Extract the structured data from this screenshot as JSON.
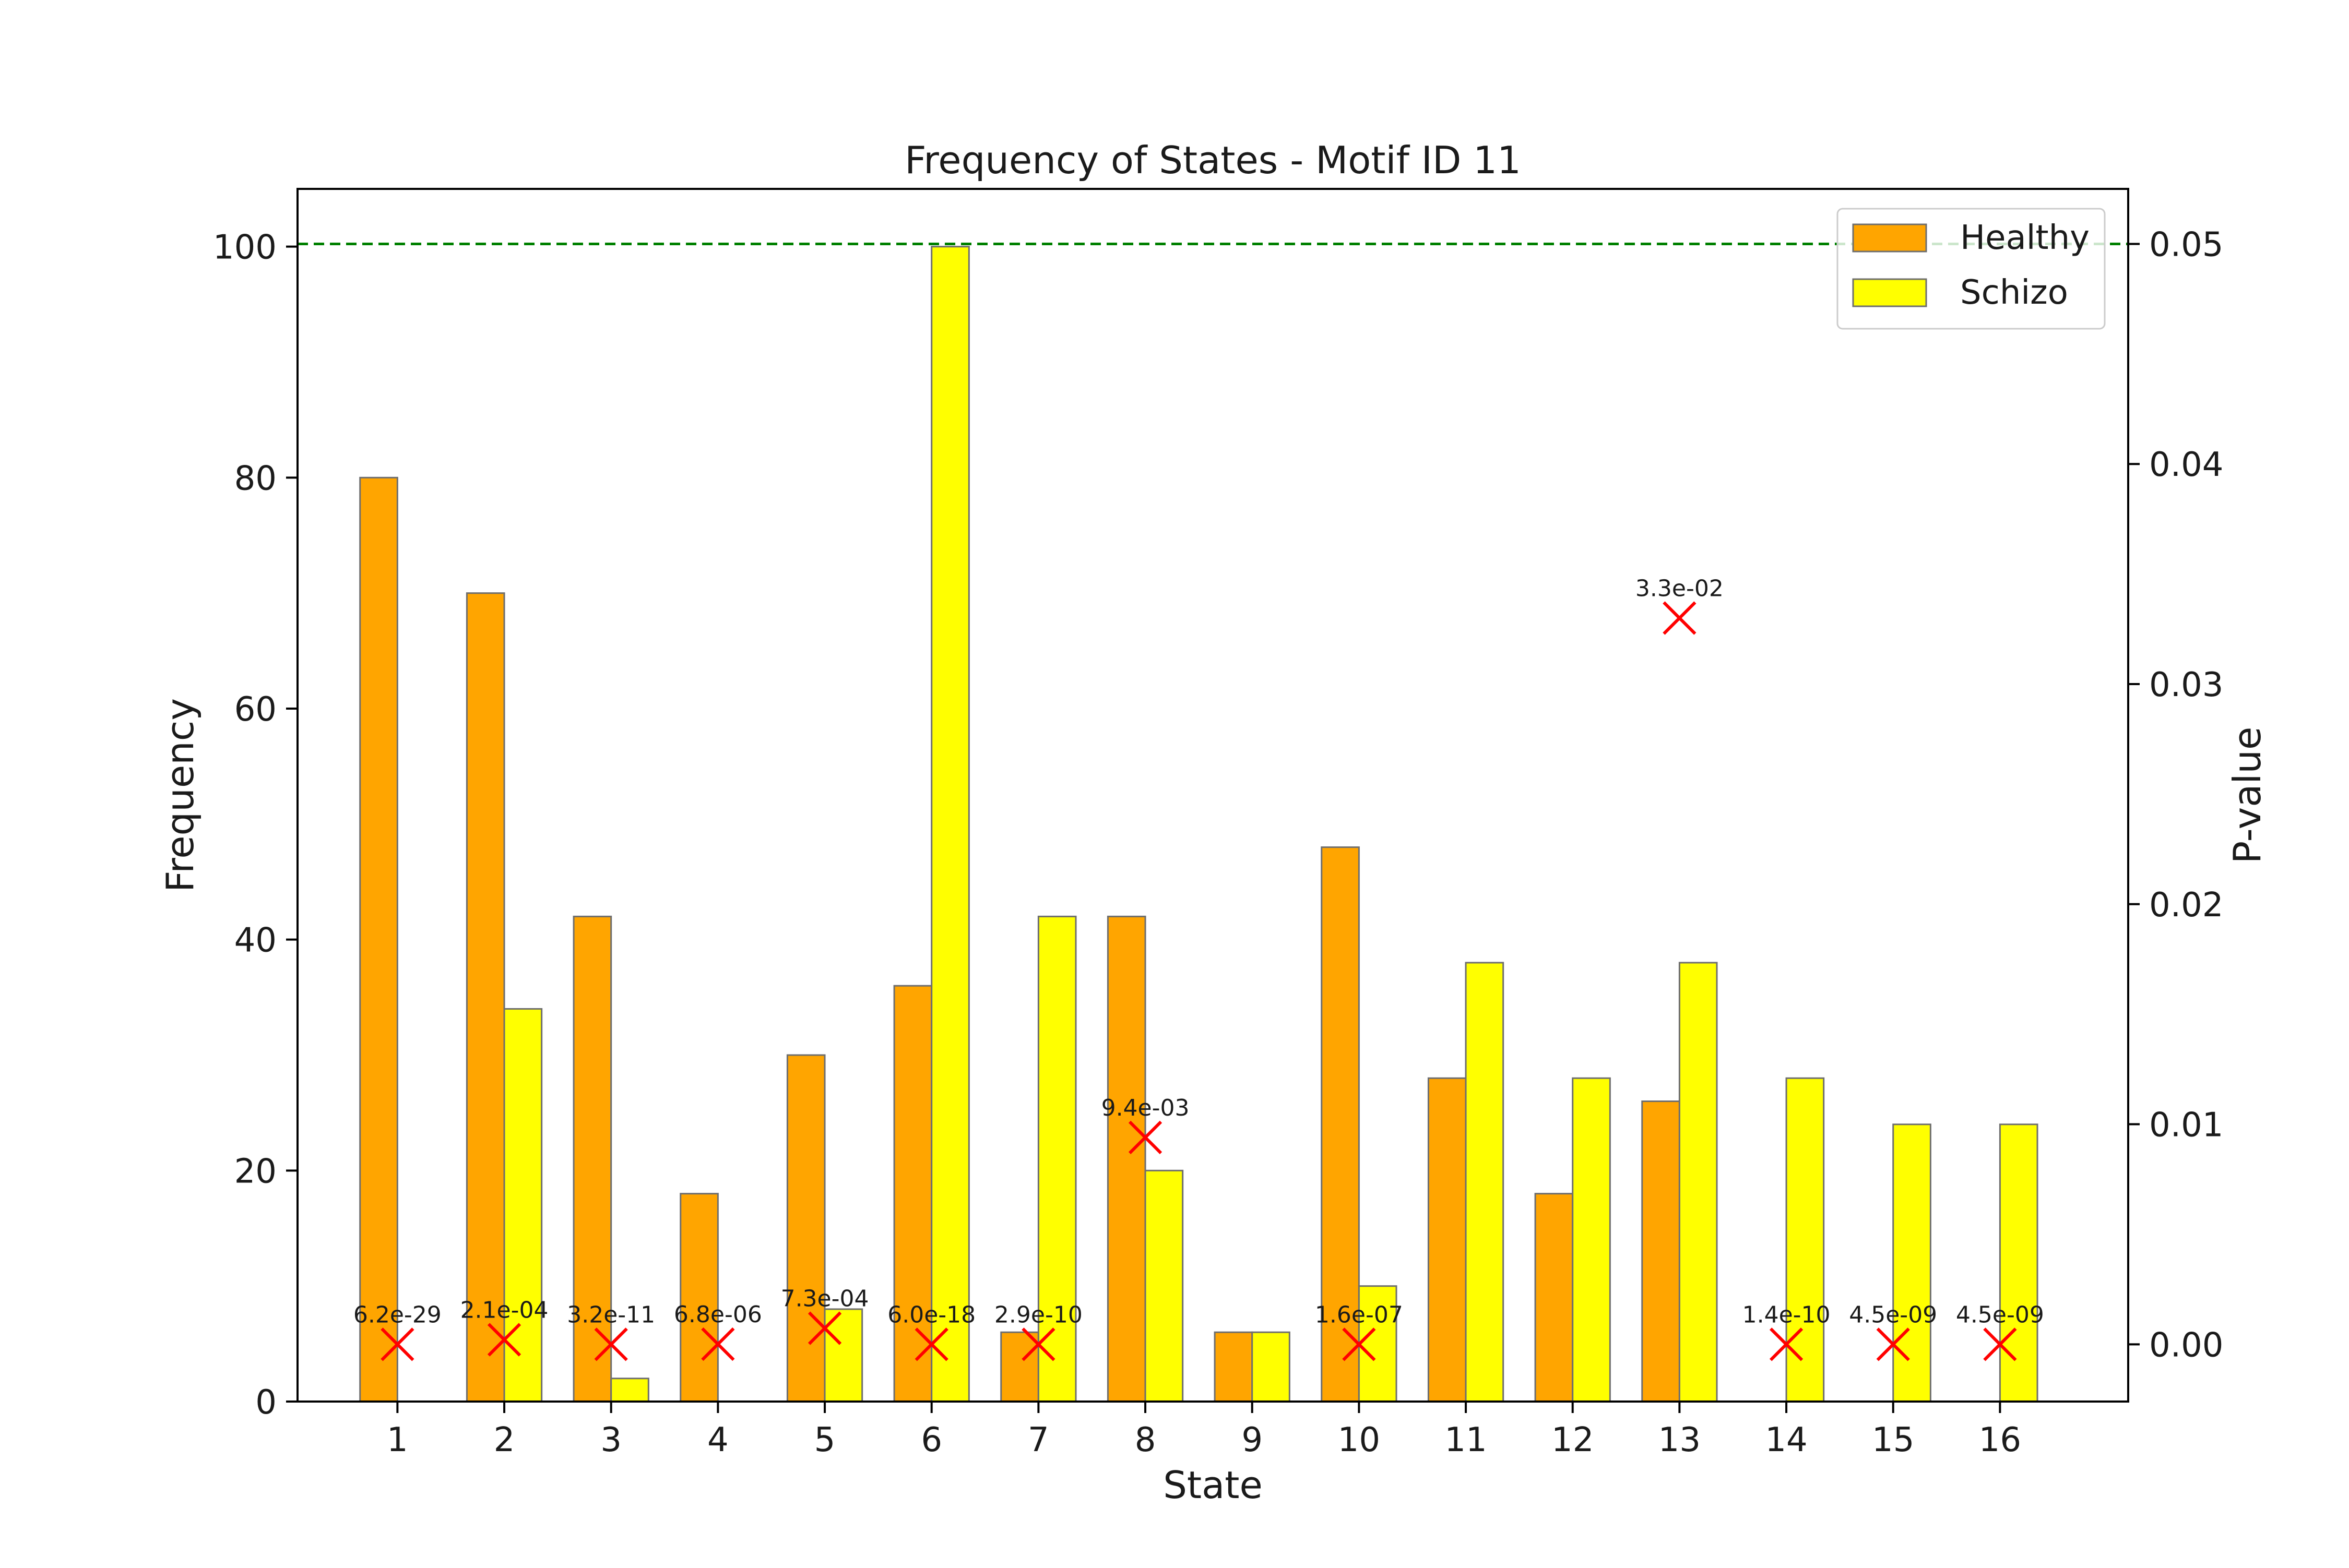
{
  "chart_data": {
    "type": "bar",
    "title": "Frequency of States - Motif ID 11",
    "xlabel": "State",
    "ylabel": "Frequency",
    "y2label": "P-value",
    "categories": [
      "1",
      "2",
      "3",
      "4",
      "5",
      "6",
      "7",
      "8",
      "9",
      "10",
      "11",
      "12",
      "13",
      "14",
      "15",
      "16"
    ],
    "series": [
      {
        "name": "Healthy",
        "color": "#FFA500",
        "values": [
          80,
          70,
          42,
          18,
          30,
          36,
          6,
          42,
          6,
          48,
          28,
          18,
          26,
          0,
          0,
          0
        ]
      },
      {
        "name": "Schizo",
        "color": "#FFFF00",
        "values": [
          0,
          34,
          2,
          0,
          8,
          100,
          42,
          20,
          6,
          10,
          38,
          28,
          38,
          28,
          24,
          24
        ]
      }
    ],
    "ylim": [
      0,
      105
    ],
    "yticks": [
      0,
      20,
      40,
      60,
      80,
      100
    ],
    "y2lim": [
      -0.0026,
      0.0525
    ],
    "y2ticks": [
      "0.00",
      "0.01",
      "0.02",
      "0.03",
      "0.04",
      "0.05"
    ],
    "y2tick_values": [
      0,
      0.01,
      0.02,
      0.03,
      0.04,
      0.05
    ],
    "threshold": {
      "value": 0.05,
      "color": "#008000",
      "style": "dashed"
    },
    "pvalues": [
      {
        "state": "1",
        "value": 6.2e-29,
        "label": "6.2e-29"
      },
      {
        "state": "2",
        "value": 0.00021,
        "label": "2.1e-04"
      },
      {
        "state": "3",
        "value": 3.2e-11,
        "label": "3.2e-11"
      },
      {
        "state": "4",
        "value": 6.8e-06,
        "label": "6.8e-06"
      },
      {
        "state": "5",
        "value": 0.00073,
        "label": "7.3e-04"
      },
      {
        "state": "6",
        "value": 6e-18,
        "label": "6.0e-18"
      },
      {
        "state": "7",
        "value": 2.9e-10,
        "label": "2.9e-10"
      },
      {
        "state": "8",
        "value": 0.0094,
        "label": "9.4e-03"
      },
      {
        "state": "10",
        "value": 1.6e-07,
        "label": "1.6e-07"
      },
      {
        "state": "13",
        "value": 0.033,
        "label": "3.3e-02"
      },
      {
        "state": "14",
        "value": 1.4e-10,
        "label": "1.4e-10"
      },
      {
        "state": "15",
        "value": 4.5e-09,
        "label": "4.5e-09"
      },
      {
        "state": "16",
        "value": 4.5e-09,
        "label": "4.5e-09"
      }
    ],
    "pvalue_marker": {
      "shape": "x",
      "color": "#FF0000"
    },
    "legend": {
      "position": "top-right"
    },
    "grid": false
  }
}
